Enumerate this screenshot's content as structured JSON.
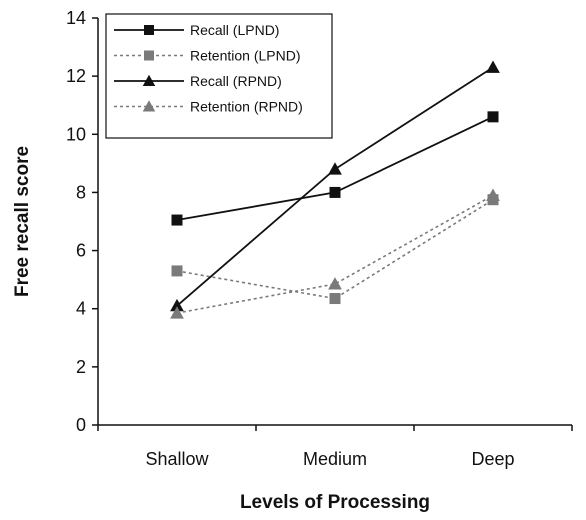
{
  "chart_data": {
    "type": "line",
    "categories": [
      "Shallow",
      "Medium",
      "Deep"
    ],
    "xlabel": "Levels of Processing",
    "ylabel": "Free recall score",
    "ylim": [
      0,
      14
    ],
    "yticks": [
      0,
      2,
      4,
      6,
      8,
      10,
      12,
      14
    ],
    "grid": false,
    "legend_position": "top-left",
    "series": [
      {
        "name": "Recall (LPND)",
        "values": [
          7.05,
          8.0,
          10.6
        ],
        "color": "#111111",
        "dashed": false,
        "marker": "square"
      },
      {
        "name": "Retention (LPND)",
        "values": [
          5.3,
          4.35,
          7.75
        ],
        "color": "#7a7a7a",
        "dashed": true,
        "marker": "square"
      },
      {
        "name": "Recall (RPND)",
        "values": [
          4.1,
          8.8,
          12.3
        ],
        "color": "#111111",
        "dashed": false,
        "marker": "triangle"
      },
      {
        "name": "Retention (RPND)",
        "values": [
          3.85,
          4.85,
          7.9
        ],
        "color": "#7a7a7a",
        "dashed": true,
        "marker": "triangle"
      }
    ]
  }
}
